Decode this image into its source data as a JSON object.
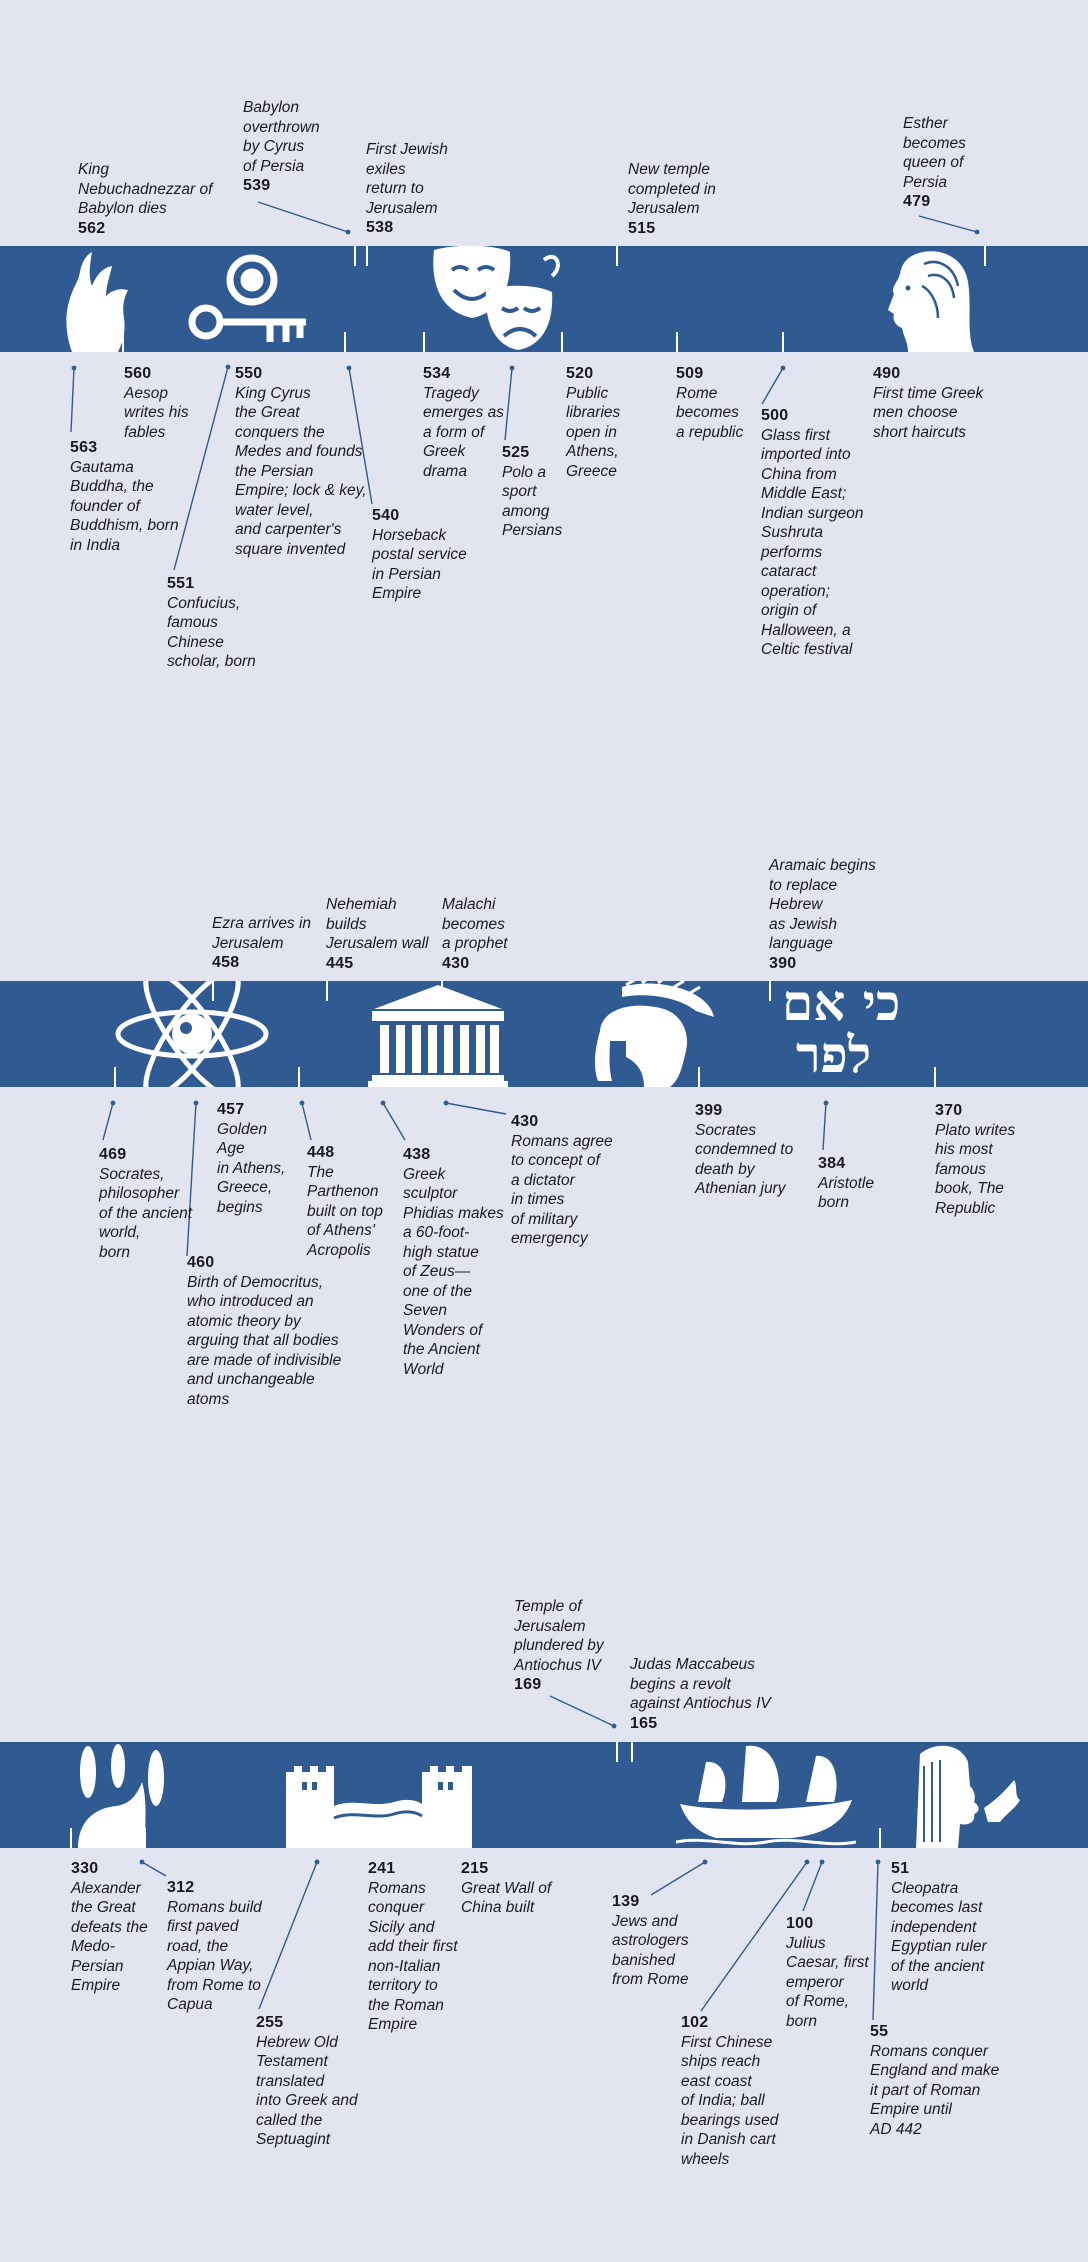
{
  "rows": [
    {
      "above": [
        {
          "year": "562",
          "text": "King\nNebuchadnezzar of\nBabylon dies"
        },
        {
          "year": "539",
          "text": "Babylon\noverthrown\nby Cyrus\nof Persia"
        },
        {
          "year": "538",
          "text": "First Jewish\nexiles\nreturn to\nJerusalem"
        },
        {
          "year": "515",
          "text": "New temple\ncompleted in\nJerusalem"
        },
        {
          "year": "479",
          "text": "Esther\nbecomes\nqueen of\nPersia"
        }
      ],
      "below": [
        {
          "year": "563",
          "text": "Gautama\nBuddha, the\nfounder of\nBuddhism, born\nin India"
        },
        {
          "year": "560",
          "text": "Aesop\nwrites his\nfables"
        },
        {
          "year": "551",
          "text": "Confucius,\nfamous\nChinese\nscholar, born"
        },
        {
          "year": "550",
          "text": "King Cyrus\nthe Great\nconquers the\nMedes and founds\nthe Persian\nEmpire; lock & key,\nwater level,\nand carpenter's\nsquare invented"
        },
        {
          "year": "540",
          "text": "Horseback\npostal service\nin Persian\nEmpire"
        },
        {
          "year": "534",
          "text": "Tragedy\nemerges as\na form of\nGreek\ndrama"
        },
        {
          "year": "525",
          "text": "Polo a\nsport\namong\nPersians"
        },
        {
          "year": "520",
          "text": "Public\nlibraries\nopen in\nAthens,\nGreece"
        },
        {
          "year": "509",
          "text": "Rome\nbecomes\na republic"
        },
        {
          "year": "500",
          "text": "Glass first\nimported into\nChina from\nMiddle East;\nIndian surgeon\nSushruta\nperforms\ncataract\noperation;\norigin of\nHalloween, a\nCeltic festival"
        },
        {
          "year": "490",
          "text": "First time Greek\nmen choose\nshort haircuts"
        }
      ]
    },
    {
      "above": [
        {
          "year": "458",
          "text": "Ezra arrives in\nJerusalem"
        },
        {
          "year": "445",
          "text": "Nehemiah\nbuilds\nJerusalem wall"
        },
        {
          "year": "430",
          "text": "Malachi\nbecomes\na prophet"
        },
        {
          "year": "390",
          "text": "Aramaic begins\nto replace\nHebrew\nas Jewish\nlanguage"
        }
      ],
      "below": [
        {
          "year": "469",
          "text": "Socrates,\nphilosopher\nof the ancient\nworld,\nborn"
        },
        {
          "year": "460",
          "text": "Birth of Democritus,\nwho introduced an\natomic theory by\narguing that all bodies\nare made of indivisible\nand unchangeable\natoms"
        },
        {
          "year": "457",
          "text": "Golden\nAge\nin Athens,\nGreece,\nbegins"
        },
        {
          "year": "448",
          "text": "The\nParthenon\nbuilt on top\nof Athens'\nAcropolis"
        },
        {
          "year": "438",
          "text": "Greek\nsculptor\nPhidias makes\na 60-foot-\nhigh statue\nof Zeus—\none of the\nSeven\nWonders of\nthe Ancient\nWorld"
        },
        {
          "year": "430",
          "text": "Romans agree\nto concept of\na dictator\nin times\nof military\nemergency"
        },
        {
          "year": "399",
          "text": "Socrates\ncondemned to\ndeath by\nAthenian jury"
        },
        {
          "year": "384",
          "text": "Aristotle\nborn"
        },
        {
          "year": "370",
          "text": "Plato writes\nhis most\nfamous\nbook, The\nRepublic"
        }
      ],
      "hebrew": [
        "כי אם",
        "לפר"
      ]
    },
    {
      "above": [
        {
          "year": "169",
          "text": "Temple of\nJerusalem\nplundered by\nAntiochus IV"
        },
        {
          "year": "165",
          "text": "Judas Maccabeus\nbegins a revolt\nagainst Antiochus IV"
        }
      ],
      "below": [
        {
          "year": "330",
          "text": "Alexander\nthe Great\ndefeats the\nMedo-\nPersian\nEmpire"
        },
        {
          "year": "312",
          "text": "Romans build\nfirst paved\nroad, the\nAppian Way,\nfrom Rome to\nCapua"
        },
        {
          "year": "255",
          "text": "Hebrew Old\nTestament\ntranslated\ninto Greek and\ncalled the\nSeptuagint"
        },
        {
          "year": "241",
          "text": "Romans\nconquer\nSicily and\nadd their first\nnon-Italian\nterritory to\nthe Roman\nEmpire"
        },
        {
          "year": "215",
          "text": "Great Wall of\nChina built"
        },
        {
          "year": "139",
          "text": "Jews and\nastrologers\nbanished\nfrom Rome"
        },
        {
          "year": "102",
          "text": "First Chinese\nships reach\neast coast\nof India; ball\nbearings used\nin Danish cart\nwheels"
        },
        {
          "year": "100",
          "text": "Julius\nCaesar, first\nemperor\nof Rome,\nborn"
        },
        {
          "year": "55",
          "text": "Romans conquer\nEngland and make\nit part of Roman\nEmpire until\nAD 442"
        },
        {
          "year": "51",
          "text": "Cleopatra\nbecomes last\nindependent\nEgyptian ruler\nof the ancient\nworld"
        }
      ]
    }
  ],
  "colors": {
    "band": "#2f5a92",
    "background": "#e2e4f0",
    "leader": "#2f5a92",
    "icon": "#ffffff"
  },
  "icons": [
    "hand-icon",
    "key-icon",
    "theater-masks-icon",
    "greek-woman-profile-icon",
    "atom-icon",
    "parthenon-icon",
    "greek-helmet-icon",
    "hebrew-letters-icon",
    "elephant-wheat-icon",
    "great-wall-icon",
    "chinese-junk-icon",
    "cleopatra-profile-icon"
  ]
}
